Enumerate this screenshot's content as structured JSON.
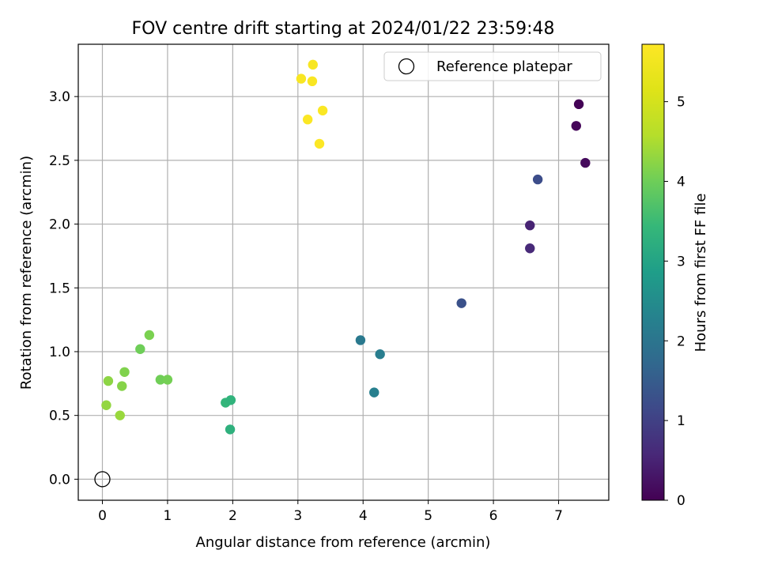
{
  "chart_data": {
    "type": "scatter",
    "title": "FOV centre drift starting at 2024/01/22 23:59:48",
    "xlabel": "Angular distance from reference (arcmin)",
    "ylabel": "Rotation from reference (arcmin)",
    "xlim": [
      -0.37,
      7.77
    ],
    "ylim": [
      -0.165,
      3.41
    ],
    "xticks": [
      0,
      1,
      2,
      3,
      4,
      5,
      6,
      7
    ],
    "xtick_labels": [
      "0",
      "1",
      "2",
      "3",
      "4",
      "5",
      "6",
      "7"
    ],
    "yticks": [
      0.0,
      0.5,
      1.0,
      1.5,
      2.0,
      2.5,
      3.0
    ],
    "ytick_labels": [
      "0.0",
      "0.5",
      "1.0",
      "1.5",
      "2.0",
      "2.5",
      "3.0"
    ],
    "grid": true,
    "colormap": "viridis",
    "legend": {
      "position": "upper right",
      "entries": [
        {
          "label": "Reference platepar",
          "marker": "open-circle"
        }
      ]
    },
    "reference_point": {
      "x": 0.0,
      "y": 0.0
    },
    "colorbar": {
      "label": "Hours from first FF file",
      "min": 0,
      "max": 5.72,
      "ticks": [
        0,
        1,
        2,
        3,
        4,
        5
      ],
      "tick_labels": [
        "0",
        "1",
        "2",
        "3",
        "4",
        "5"
      ]
    },
    "points": [
      {
        "x": 7.31,
        "y": 2.94,
        "hours": 0.03
      },
      {
        "x": 7.27,
        "y": 2.77,
        "hours": 0.08
      },
      {
        "x": 7.41,
        "y": 2.48,
        "hours": 0.13
      },
      {
        "x": 6.56,
        "y": 1.99,
        "hours": 0.5
      },
      {
        "x": 6.56,
        "y": 1.81,
        "hours": 0.6
      },
      {
        "x": 6.68,
        "y": 2.35,
        "hours": 1.22
      },
      {
        "x": 5.51,
        "y": 1.38,
        "hours": 1.3
      },
      {
        "x": 3.96,
        "y": 1.09,
        "hours": 2.08
      },
      {
        "x": 4.26,
        "y": 0.98,
        "hours": 2.18
      },
      {
        "x": 4.17,
        "y": 0.68,
        "hours": 2.22
      },
      {
        "x": 1.89,
        "y": 0.6,
        "hours": 3.38
      },
      {
        "x": 1.97,
        "y": 0.62,
        "hours": 3.33
      },
      {
        "x": 1.96,
        "y": 0.39,
        "hours": 3.28
      },
      {
        "x": 0.89,
        "y": 0.78,
        "hours": 4.02
      },
      {
        "x": 1.0,
        "y": 0.78,
        "hours": 4.05
      },
      {
        "x": 0.58,
        "y": 1.02,
        "hours": 4.0
      },
      {
        "x": 0.72,
        "y": 1.13,
        "hours": 4.1
      },
      {
        "x": 0.34,
        "y": 0.84,
        "hours": 4.15
      },
      {
        "x": 0.09,
        "y": 0.77,
        "hours": 4.25
      },
      {
        "x": 0.3,
        "y": 0.73,
        "hours": 4.2
      },
      {
        "x": 0.06,
        "y": 0.58,
        "hours": 4.3
      },
      {
        "x": 0.27,
        "y": 0.5,
        "hours": 4.35
      },
      {
        "x": 3.23,
        "y": 3.25,
        "hours": 5.6
      },
      {
        "x": 3.05,
        "y": 3.14,
        "hours": 5.62
      },
      {
        "x": 3.22,
        "y": 3.12,
        "hours": 5.64
      },
      {
        "x": 3.38,
        "y": 2.89,
        "hours": 5.66
      },
      {
        "x": 3.15,
        "y": 2.82,
        "hours": 5.68
      },
      {
        "x": 3.33,
        "y": 2.63,
        "hours": 5.7
      }
    ]
  }
}
